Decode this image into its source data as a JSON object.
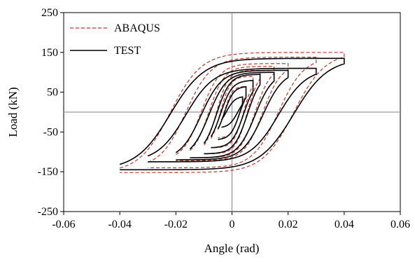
{
  "chart_data": {
    "type": "line",
    "title": "",
    "xlabel": "Angle (rad)",
    "ylabel": "Load (kN)",
    "xlim": [
      -0.06,
      0.06
    ],
    "ylim": [
      -250,
      250
    ],
    "xticks": [
      -0.06,
      -0.04,
      -0.02,
      0,
      0.02,
      0.04,
      0.06
    ],
    "xtick_labels": [
      "-0.06",
      "-0.04",
      "-0.02",
      "0",
      "0.02",
      "0.04",
      "0.06"
    ],
    "yticks": [
      -250,
      -150,
      -50,
      50,
      150,
      250
    ],
    "ytick_labels": [
      "-250",
      "-150",
      "-50",
      "50",
      "150",
      "250"
    ],
    "grid": false,
    "zero_lines": true,
    "legend_position": "top-left",
    "series": [
      {
        "name": "ABAQUS",
        "style": "dashed",
        "color": "#c0392b",
        "cycles": [
          {
            "amp": 0.005,
            "fmax": 65,
            "fmin": -65,
            "sharp": 0.6
          },
          {
            "amp": 0.0075,
            "fmax": 90,
            "fmin": -90,
            "sharp": 0.7
          },
          {
            "amp": 0.01,
            "fmax": 105,
            "fmin": -105,
            "sharp": 0.8
          },
          {
            "amp": 0.015,
            "fmax": 115,
            "fmin": -115,
            "sharp": 0.9
          },
          {
            "amp": 0.02,
            "fmax": 122,
            "fmin": -122,
            "sharp": 1.0
          },
          {
            "amp": 0.03,
            "fmax": 138,
            "fmin": -140,
            "sharp": 1.1
          },
          {
            "amp": 0.04,
            "fmax": 150,
            "fmin": -152,
            "sharp": 1.2
          }
        ]
      },
      {
        "name": "TEST",
        "style": "solid",
        "color": "#000000",
        "cycles": [
          {
            "amp": 0.00375,
            "fmax": 40,
            "fmin": -40,
            "sharp": 0.4
          },
          {
            "amp": 0.005,
            "fmax": 65,
            "fmin": -70,
            "sharp": 0.5
          },
          {
            "amp": 0.0075,
            "fmax": 80,
            "fmin": -90,
            "sharp": 0.6
          },
          {
            "amp": 0.01,
            "fmax": 95,
            "fmin": -105,
            "sharp": 0.7
          },
          {
            "amp": 0.015,
            "fmax": 100,
            "fmin": -115,
            "sharp": 0.8
          },
          {
            "amp": 0.02,
            "fmax": 105,
            "fmin": -120,
            "sharp": 0.9
          },
          {
            "amp": 0.03,
            "fmax": 110,
            "fmin": -125,
            "sharp": 1.0
          },
          {
            "amp": 0.04,
            "fmax": 135,
            "fmin": -145,
            "sharp": 1.1
          }
        ]
      }
    ]
  }
}
